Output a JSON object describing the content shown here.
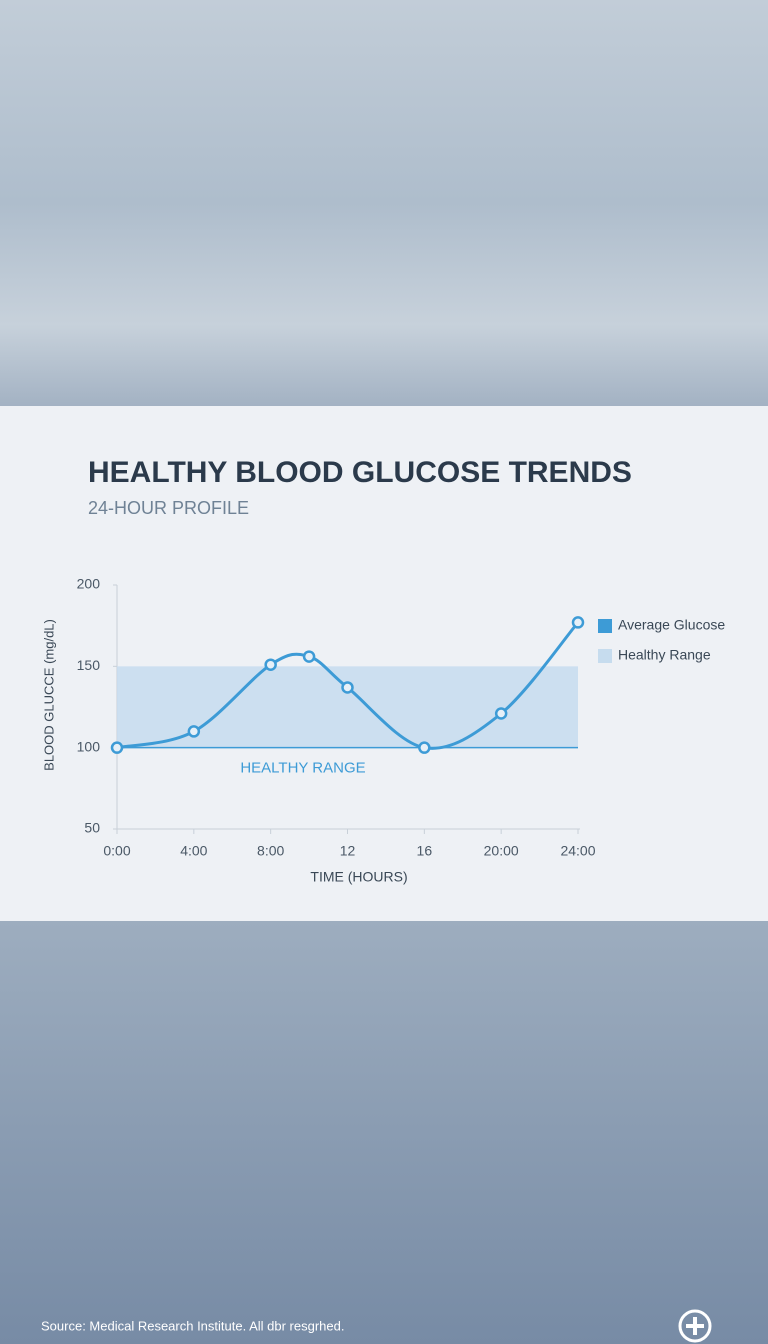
{
  "chart_data": {
    "type": "line",
    "title": "HEALTHY BLOOD GLUCOSE TRENDS",
    "subtitle": "24-HOUR PROFILE",
    "x_label": "TIME (HOURS)",
    "y_label": "BLOOD GLUCCE (mg/dL)",
    "x": [
      0,
      4,
      8,
      10,
      12,
      16,
      20,
      24
    ],
    "series": [
      {
        "name": "Average Glucose",
        "color": "#3d9bd6",
        "values": [
          100,
          110,
          151,
          156,
          137,
          100,
          121,
          177
        ]
      }
    ],
    "band": {
      "name": "Healthy Range",
      "label": "HEALTHY RANGE",
      "range": [
        100,
        150
      ],
      "color": "#c6dcee"
    },
    "xlim": [
      0,
      24
    ],
    "xticks": [
      {
        "value": 0,
        "label": "0:00"
      },
      {
        "value": 4,
        "label": "4:00"
      },
      {
        "value": 8,
        "label": "8:00"
      },
      12,
      16,
      {
        "value": 20,
        "label": "20:00"
      },
      {
        "value": 24,
        "label": "24:00"
      }
    ],
    "ylim": [
      50,
      200
    ],
    "yticks": [
      50,
      100,
      150,
      200
    ],
    "grid": false,
    "legend": "right"
  },
  "footer": {
    "source": "Source: Medical Research Institute. All dbr resgrhed."
  }
}
